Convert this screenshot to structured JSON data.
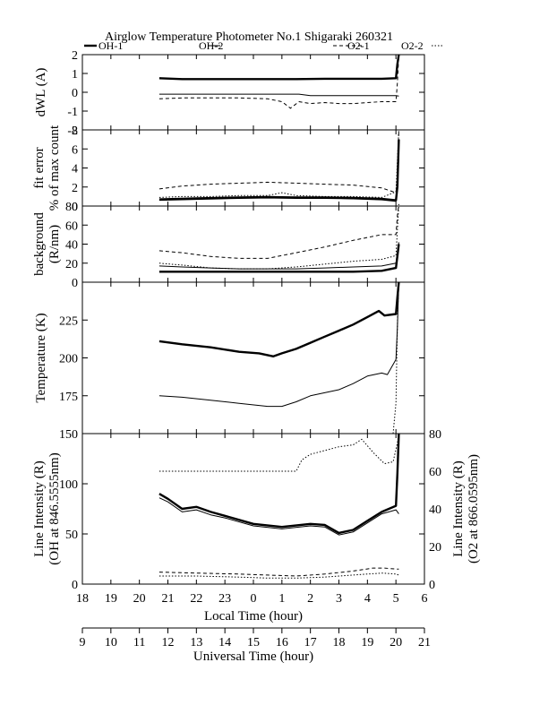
{
  "chart_data": {
    "type": "line",
    "title": "Airglow Temperature Photometer No.1  Shigaraki  260321",
    "legend": [
      {
        "name": "OH-1",
        "style": "solid-thick"
      },
      {
        "name": "OH-2",
        "style": "solid-thin"
      },
      {
        "name": "O2-1",
        "style": "dashed"
      },
      {
        "name": "O2-2",
        "style": "dotted"
      }
    ],
    "x_local": {
      "label": "Local Time (hour)",
      "range": [
        18,
        30
      ],
      "ticks": [
        "18",
        "19",
        "20",
        "21",
        "22",
        "23",
        "0",
        "1",
        "2",
        "3",
        "4",
        "5",
        "6"
      ]
    },
    "x_ut": {
      "label": "Universal Time (hour)",
      "range": [
        9,
        21
      ],
      "ticks": [
        "9",
        "10",
        "11",
        "12",
        "13",
        "14",
        "15",
        "16",
        "17",
        "18",
        "19",
        "20",
        "21"
      ]
    },
    "panels": [
      {
        "id": "dwl",
        "ylabel": "dWL (A)",
        "ylim": [
          -2,
          2
        ],
        "yticks": [
          "2",
          "1",
          "0",
          "-1",
          "-2"
        ],
        "series": [
          {
            "name": "OH-1",
            "style": "solid-thick",
            "x": [
              20.7,
              21.5,
              22.5,
              23.5,
              24.5,
              25.5,
              26.5,
              27.5,
              28.5,
              29.0,
              29.05,
              29.1
            ],
            "y": [
              0.75,
              0.7,
              0.7,
              0.7,
              0.7,
              0.7,
              0.72,
              0.72,
              0.72,
              0.75,
              1.5,
              2.0
            ]
          },
          {
            "name": "OH-2",
            "style": "solid-thin",
            "x": [
              20.7,
              22,
              24,
              25.6,
              26,
              27.5,
              29.0,
              29.1
            ],
            "y": [
              -0.1,
              -0.1,
              -0.1,
              -0.1,
              -0.18,
              -0.18,
              -0.18,
              -0.2
            ]
          },
          {
            "name": "O2-1",
            "style": "dashed",
            "x": [
              20.7,
              21.5,
              22.5,
              23.5,
              24.5,
              25,
              25.3,
              25.6,
              26,
              26.5,
              27,
              27.5,
              28,
              28.5,
              29.0,
              29.05,
              29.1
            ],
            "y": [
              -0.35,
              -0.3,
              -0.3,
              -0.3,
              -0.35,
              -0.5,
              -0.85,
              -0.5,
              -0.6,
              -0.55,
              -0.6,
              -0.6,
              -0.55,
              -0.5,
              -0.5,
              0.5,
              2.0
            ]
          }
        ]
      },
      {
        "id": "fit",
        "ylabel_lines": [
          "fit error",
          "% of max count"
        ],
        "ylim": [
          0,
          8
        ],
        "yticks": [
          "8",
          "6",
          "4",
          "2",
          "0"
        ],
        "series": [
          {
            "name": "O2-1",
            "style": "dashed",
            "x": [
              20.7,
              21.5,
              22.5,
              23.5,
              24.5,
              25.5,
              26.5,
              27.5,
              28.5,
              29.0,
              29.05,
              29.1
            ],
            "y": [
              1.8,
              2.1,
              2.3,
              2.4,
              2.5,
              2.4,
              2.3,
              2.2,
              1.9,
              1.4,
              3.0,
              8.0
            ]
          },
          {
            "name": "O2-2",
            "style": "dotted",
            "x": [
              20.7,
              21.5,
              22.5,
              23.5,
              24.5,
              25,
              25.5,
              26.5,
              27.5,
              28.5,
              29.0,
              29.1
            ],
            "y": [
              0.9,
              1.0,
              1.0,
              1.1,
              1.1,
              1.4,
              1.1,
              1.0,
              1.0,
              0.9,
              1.5,
              8.0
            ]
          },
          {
            "name": "OH-1",
            "style": "solid-thick",
            "x": [
              20.7,
              22,
              23.5,
              24.5,
              25.5,
              26.5,
              27.5,
              28.5,
              29.0,
              29.05,
              29.1
            ],
            "y": [
              0.7,
              0.8,
              0.9,
              0.95,
              0.9,
              0.9,
              0.85,
              0.75,
              0.6,
              2.0,
              7.0
            ]
          },
          {
            "name": "OH-2",
            "style": "solid-thin",
            "x": [
              20.7,
              22,
              23.5,
              24.5,
              25.5,
              26.5,
              27.5,
              28.5,
              29.0,
              29.1
            ],
            "y": [
              0.6,
              0.7,
              0.8,
              0.85,
              0.8,
              0.8,
              0.75,
              0.65,
              0.5,
              5.0
            ]
          }
        ]
      },
      {
        "id": "bg",
        "ylabel_lines": [
          "background",
          "(R/nm)"
        ],
        "ylim": [
          0,
          80
        ],
        "yticks": [
          "80",
          "60",
          "40",
          "20",
          "0"
        ],
        "series": [
          {
            "name": "O2-1",
            "style": "dashed",
            "x": [
              20.7,
              21.5,
              22.5,
              23.5,
              24.5,
              25.5,
              26.5,
              27.5,
              28.5,
              29.0,
              29.05,
              29.1
            ],
            "y": [
              33,
              31,
              27,
              25,
              25,
              31,
              37,
              44,
              50,
              50,
              70,
              82
            ]
          },
          {
            "name": "O2-2",
            "style": "dotted",
            "x": [
              20.7,
              21.5,
              22.5,
              23.5,
              24.5,
              25.5,
              26.5,
              27.5,
              28.5,
              29.0,
              29.1
            ],
            "y": [
              20,
              18,
              15,
              14,
              14,
              16,
              19,
              22,
              24,
              28,
              82
            ]
          },
          {
            "name": "OH-2",
            "style": "solid-thin",
            "x": [
              20.7,
              21.5,
              22.5,
              23.5,
              24.5,
              25.5,
              26.5,
              27.5,
              28.5,
              29.0,
              29.1
            ],
            "y": [
              17,
              16,
              15,
              14,
              14,
              14,
              15,
              16,
              17,
              20,
              42
            ]
          },
          {
            "name": "OH-1",
            "style": "solid-thick",
            "x": [
              20.7,
              21.5,
              22.5,
              23.5,
              24.5,
              25.5,
              26.5,
              27.5,
              28.5,
              29.0,
              29.1
            ],
            "y": [
              11,
              11,
              11,
              11,
              11,
              11,
              11,
              11,
              12,
              15,
              40
            ]
          }
        ]
      },
      {
        "id": "temp",
        "ylabel": "Temperature (K)",
        "ylim": [
          150,
          250
        ],
        "yticks": [
          "225",
          "200",
          "175"
        ],
        "series": [
          {
            "name": "OH-1",
            "style": "solid-thick",
            "x": [
              20.7,
              21.5,
              22.5,
              23.5,
              24.2,
              24.7,
              25,
              25.5,
              26,
              26.5,
              27,
              27.5,
              28,
              28.4,
              28.6,
              29.0,
              29.05,
              29.1
            ],
            "y": [
              211,
              209,
              207,
              204,
              203,
              201,
              203,
              206,
              210,
              214,
              218,
              222,
              227,
              231,
              228,
              229,
              240,
              250
            ]
          },
          {
            "name": "OH-2",
            "style": "solid-thin",
            "x": [
              20.7,
              21.5,
              22.5,
              23.5,
              24.5,
              25,
              25.5,
              26,
              26.5,
              27,
              27.5,
              28,
              28.5,
              28.7,
              29.0,
              29.05,
              29.1
            ],
            "y": [
              175,
              174,
              172,
              170,
              168,
              168,
              171,
              175,
              177,
              179,
              183,
              188,
              190,
              189,
              199,
              220,
              250
            ]
          },
          {
            "name": "O2-1",
            "style": "dotted",
            "x": [
              28.9,
              29.0,
              29.03,
              29.06,
              29.1
            ],
            "y": [
              150,
              170,
              200,
              230,
              250
            ]
          }
        ]
      },
      {
        "id": "int",
        "ylabel_lines": [
          "Line Intensity (R)",
          "(OH at 846.5555nm)"
        ],
        "ylim": [
          0,
          150
        ],
        "yticks": [
          "150",
          "100",
          "50",
          "0"
        ],
        "y2label_lines": [
          "Line Intensity (R)",
          "(O2 at 866.0595nm)"
        ],
        "y2lim": [
          0,
          80
        ],
        "y2ticks": [
          "80",
          "60",
          "40",
          "20",
          "0"
        ],
        "series": [
          {
            "name": "OH-1",
            "style": "solid-thick",
            "axis": "left",
            "x": [
              20.7,
              21,
              21.5,
              22,
              22.5,
              23,
              24,
              25,
              26,
              26.5,
              27,
              27.5,
              28,
              28.5,
              29.0,
              29.05,
              29.1
            ],
            "y": [
              90,
              85,
              75,
              77,
              72,
              68,
              60,
              57,
              60,
              59,
              51,
              54,
              63,
              72,
              78,
              110,
              150
            ]
          },
          {
            "name": "OH-2",
            "style": "solid-thin",
            "axis": "left",
            "x": [
              20.7,
              21,
              21.5,
              22,
              22.5,
              23,
              24,
              25,
              26,
              26.5,
              27,
              27.5,
              28,
              28.5,
              29.0,
              29.1
            ],
            "y": [
              86,
              82,
              72,
              74,
              69,
              66,
              58,
              55,
              58,
              57,
              49,
              52,
              61,
              70,
              74,
              70
            ]
          },
          {
            "name": "O2-1",
            "style": "dashed",
            "axis": "left",
            "x": [
              20.7,
              22,
              23.5,
              24.5,
              25.5,
              26.5,
              27.5,
              28.2,
              28.6,
              29.0,
              29.1
            ],
            "y": [
              12,
              11,
              10,
              9,
              8,
              10,
              13,
              16,
              16,
              15,
              15
            ]
          },
          {
            "name": "O2-2",
            "style": "dotted",
            "axis": "left",
            "x": [
              20.7,
              22,
              23.5,
              24.5,
              25.5,
              26.5,
              27.5,
              28.5,
              29.0,
              29.1
            ],
            "y": [
              8,
              8,
              7,
              6,
              6,
              7,
              9,
              11,
              10,
              9
            ]
          },
          {
            "name": "O2-2",
            "style": "dotted",
            "axis": "right",
            "x": [
              20.7,
              22,
              24,
              25.5,
              25.7,
              26,
              26.5,
              27,
              27.5,
              27.8,
              28.2,
              28.6,
              28.9,
              29.05,
              29.1
            ],
            "y": [
              60,
              60,
              60,
              60,
              66,
              69,
              71,
              73,
              74,
              77,
              70,
              64,
              65,
              75,
              80
            ]
          }
        ]
      }
    ]
  }
}
